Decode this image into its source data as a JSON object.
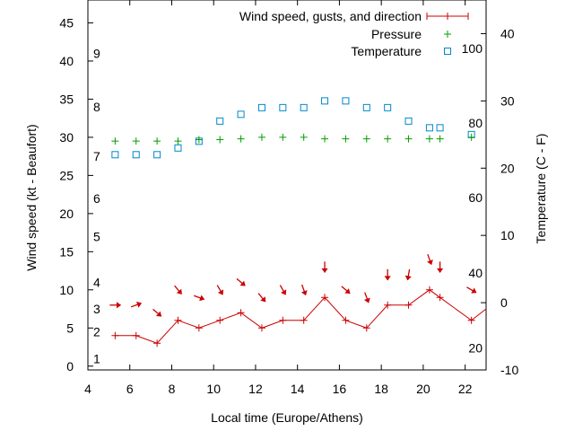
{
  "chart_data": {
    "type": "scatter",
    "xlabel": "Local time (Europe/Athens)",
    "ylabel": "Wind speed (kt - Beaufort)",
    "y2label": "Temperature (C - F)",
    "xlim": [
      4,
      23
    ],
    "ylim": [
      -0.5,
      48
    ],
    "y2lim": [
      -10,
      45
    ],
    "grid": false,
    "legend_position": "top-right",
    "x_ticks": [
      4,
      6,
      8,
      10,
      12,
      14,
      16,
      18,
      20,
      22
    ],
    "y_ticks": [
      0,
      5,
      10,
      15,
      20,
      25,
      30,
      35,
      40,
      45
    ],
    "y2_ticks": [
      -10,
      0,
      10,
      20,
      30,
      40
    ],
    "beaufort_labels": [
      {
        "label": "1",
        "kt": 1
      },
      {
        "label": "2",
        "kt": 4.5
      },
      {
        "label": "3",
        "kt": 7.5
      },
      {
        "label": "4",
        "kt": 11
      },
      {
        "label": "5",
        "kt": 17
      },
      {
        "label": "6",
        "kt": 22
      },
      {
        "label": "7",
        "kt": 27.5
      },
      {
        "label": "8",
        "kt": 34
      },
      {
        "label": "9",
        "kt": 41
      }
    ],
    "fahrenheit_labels": [
      {
        "label": "20",
        "temp_c": -6.7
      },
      {
        "label": "40",
        "temp_c": 4.4
      },
      {
        "label": "60",
        "temp_c": 15.6
      },
      {
        "label": "80",
        "temp_c": 26.7
      },
      {
        "label": "100",
        "temp_c": 37.8
      }
    ],
    "series": [
      {
        "name": "Wind speed, gusts, and direction",
        "type": "line",
        "color": "#cc0000",
        "x": [
          5.3,
          6.3,
          7.3,
          8.3,
          9.3,
          10.3,
          11.3,
          12.3,
          13.3,
          14.3,
          15.3,
          16.3,
          17.3,
          18.3,
          19.3,
          20.3,
          20.8,
          22.3,
          23
        ],
        "y": [
          4,
          4,
          3,
          6,
          5,
          6,
          7,
          5,
          6,
          6,
          9,
          6,
          5,
          8,
          8,
          10,
          9,
          6,
          7.5
        ],
        "direction_deg": [
          270,
          250,
          310,
          320,
          290,
          330,
          310,
          320,
          330,
          340,
          0,
          310,
          340,
          0,
          10,
          340,
          0,
          300,
          null
        ]
      },
      {
        "name": "Pressure",
        "type": "scatter",
        "marker": "plus",
        "color": "#00a000",
        "x": [
          5.3,
          6.3,
          7.3,
          8.3,
          9.3,
          10.3,
          11.3,
          12.3,
          13.3,
          14.3,
          15.3,
          16.3,
          17.3,
          18.3,
          19.3,
          20.3,
          20.8,
          22.3
        ],
        "y": [
          29.5,
          29.5,
          29.5,
          29.5,
          29.7,
          29.7,
          29.8,
          30,
          30,
          30,
          29.8,
          29.8,
          29.8,
          29.8,
          29.8,
          29.8,
          29.8,
          30
        ]
      },
      {
        "name": "Temperature",
        "type": "scatter",
        "marker": "square",
        "color": "#0088cc",
        "axis": "y2",
        "x": [
          5.3,
          6.3,
          7.3,
          8.3,
          9.3,
          10.3,
          11.3,
          12.3,
          13.3,
          14.3,
          15.3,
          16.3,
          17.3,
          18.3,
          19.3,
          20.3,
          20.8,
          22.3
        ],
        "y": [
          22,
          22,
          22,
          23,
          24,
          27,
          28,
          29,
          29,
          29,
          30,
          30,
          29,
          29,
          27,
          26,
          26,
          25
        ]
      }
    ]
  }
}
